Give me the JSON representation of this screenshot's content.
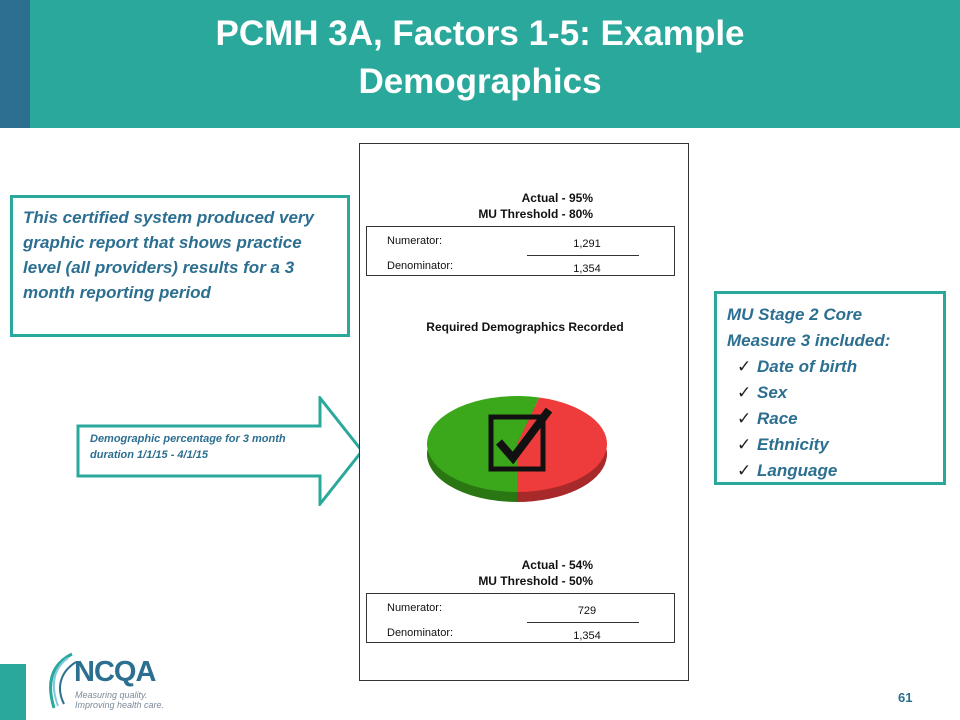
{
  "slide": {
    "title_line1": "PCMH 3A, Factors 1-5: Example",
    "title_line2": "Demographics",
    "page_number": "61"
  },
  "logo": {
    "name": "NCQA",
    "tagline_line1": "Measuring quality.",
    "tagline_line2": "Improving health care."
  },
  "callout_left": {
    "text": "This certified system produced very graphic report that shows practice level (all providers) results for a 3 month reporting period"
  },
  "arrow": {
    "text": "Demographic percentage for 3 month duration 1/1/15 - 4/1/15"
  },
  "callout_right": {
    "heading": "MU Stage 2 Core Measure 3 included:",
    "items": [
      "Date of birth",
      "Sex",
      "Race",
      "Ethnicity",
      "Language"
    ]
  },
  "report": {
    "top": {
      "actual": "Actual - 95%",
      "threshold": "MU Threshold - 80%",
      "numerator_label": "Numerator:",
      "numerator_value": "1,291",
      "denominator_label": "Denominator:",
      "denominator_value": "1,354"
    },
    "chart_title": "Required Demographics Recorded",
    "bottom": {
      "actual": "Actual - 54%",
      "threshold": "MU Threshold - 50%",
      "numerator_label": "Numerator:",
      "numerator_value": "729",
      "denominator_label": "Denominator:",
      "denominator_value": "1,354"
    }
  },
  "chart_data": {
    "type": "pie",
    "title": "Required Demographics Recorded",
    "slices": [
      {
        "value": 54,
        "color": "#3aa81a"
      },
      {
        "value": 46,
        "color": "#ee3b3b"
      }
    ]
  },
  "colors": {
    "teal": "#2aa89c",
    "navy": "#2c6f90"
  }
}
